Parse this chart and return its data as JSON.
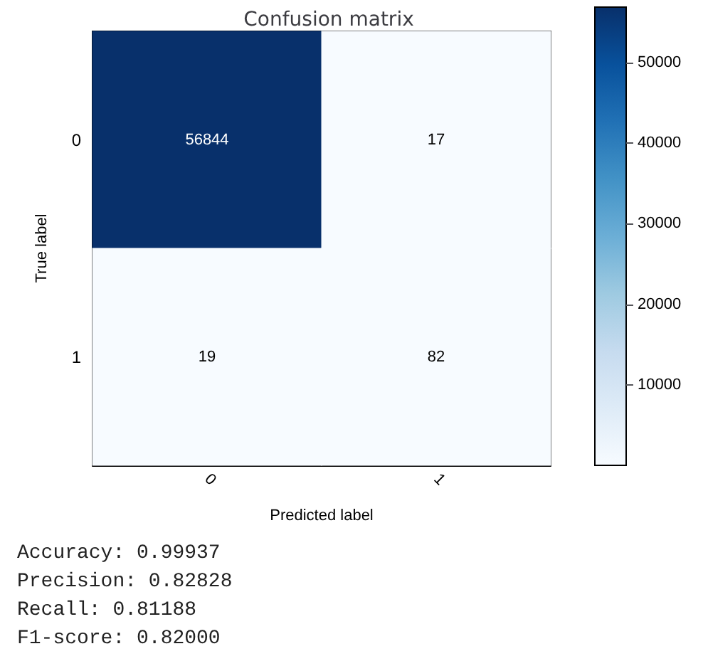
{
  "chart_data": {
    "type": "heatmap",
    "title": "Confusion matrix",
    "xlabel": "Predicted label",
    "ylabel": "True label",
    "categories": [
      "0",
      "1"
    ],
    "y_categories": [
      "0",
      "1"
    ],
    "cells": [
      [
        56844,
        17
      ],
      [
        19,
        82
      ]
    ],
    "data_labels": true,
    "clim": [
      17,
      56844
    ],
    "cticks": [
      10000,
      20000,
      30000,
      40000,
      50000
    ],
    "annotations": [
      "Accuracy: 0.99937",
      "Precision: 0.82828",
      "Recall: 0.81188",
      "F1-score: 0.82000"
    ]
  }
}
